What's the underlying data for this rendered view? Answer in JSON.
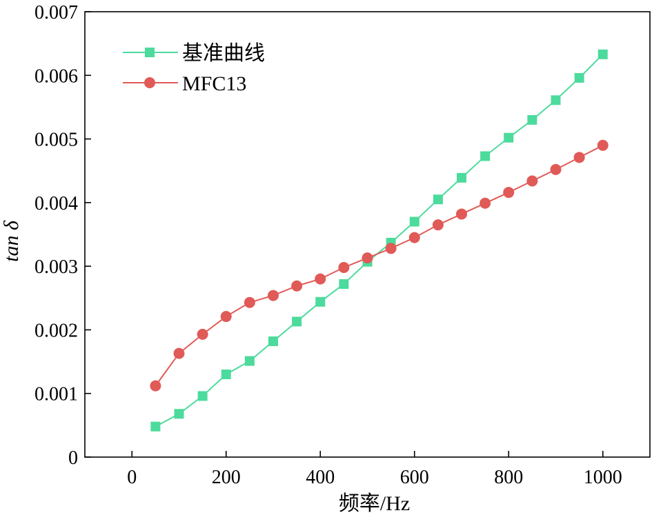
{
  "chart_data": {
    "type": "line",
    "title": "",
    "xlabel": "频率/Hz",
    "ylabel": "tan δ",
    "xlim": [
      -100,
      1100
    ],
    "ylim": [
      0,
      0.007
    ],
    "xticks": [
      0,
      200,
      400,
      600,
      800,
      1000
    ],
    "yticks": [
      0,
      0.001,
      0.002,
      0.003,
      0.004,
      0.005,
      0.006,
      0.007
    ],
    "ytick_labels": [
      "0",
      "0.001",
      "0.002",
      "0.003",
      "0.004",
      "0.005",
      "0.006",
      "0.007"
    ],
    "grid": false,
    "legend": "top-left",
    "x": [
      50,
      100,
      150,
      200,
      250,
      300,
      350,
      400,
      450,
      500,
      550,
      600,
      650,
      700,
      750,
      800,
      850,
      900,
      950,
      1000
    ],
    "series": [
      {
        "name": "基准曲线",
        "color": "#4cdb9c",
        "marker": "square",
        "values": [
          0.00048,
          0.00068,
          0.00096,
          0.0013,
          0.00151,
          0.00182,
          0.00213,
          0.00244,
          0.00272,
          0.00307,
          0.00337,
          0.0037,
          0.00405,
          0.00439,
          0.00473,
          0.00502,
          0.0053,
          0.00561,
          0.00596,
          0.00633
        ]
      },
      {
        "name": "MFC13",
        "color": "#e05a57",
        "marker": "circle",
        "values": [
          0.00112,
          0.00163,
          0.00193,
          0.00221,
          0.00243,
          0.00254,
          0.00269,
          0.0028,
          0.00298,
          0.00313,
          0.00328,
          0.00345,
          0.00365,
          0.00382,
          0.00399,
          0.00416,
          0.00434,
          0.00452,
          0.00471,
          0.0049
        ]
      }
    ]
  }
}
